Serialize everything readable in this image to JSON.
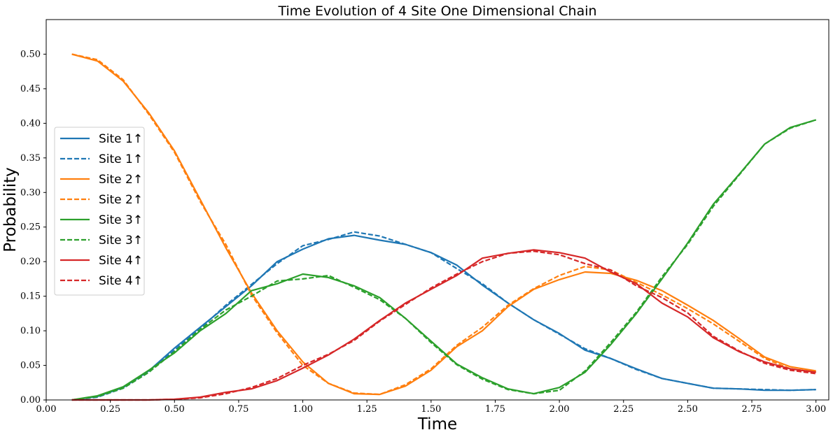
{
  "chart_data": {
    "type": "line",
    "title": "Time Evolution of 4 Site One Dimensional Chain",
    "xlabel": "Time",
    "ylabel": "Probability",
    "xlim": [
      0.0,
      3.05
    ],
    "ylim": [
      0.0,
      0.55
    ],
    "xticks": [
      "0.00",
      "0.25",
      "0.50",
      "0.75",
      "1.00",
      "1.25",
      "1.50",
      "1.75",
      "2.00",
      "2.25",
      "2.50",
      "2.75",
      "3.00"
    ],
    "yticks": [
      "0.00",
      "0.05",
      "0.10",
      "0.15",
      "0.20",
      "0.25",
      "0.30",
      "0.35",
      "0.40",
      "0.45",
      "0.50"
    ],
    "grid": false,
    "legend_position": "center-left",
    "x": [
      0.1,
      0.2,
      0.3,
      0.4,
      0.5,
      0.6,
      0.7,
      0.8,
      0.9,
      1.0,
      1.1,
      1.2,
      1.3,
      1.4,
      1.5,
      1.6,
      1.7,
      1.8,
      1.9,
      2.0,
      2.1,
      2.2,
      2.3,
      2.4,
      2.5,
      2.6,
      2.7,
      2.8,
      2.9,
      3.0
    ],
    "series": [
      {
        "name": "Site 1↑",
        "color": "#1f77b4",
        "dash": "solid",
        "values": [
          0.0,
          0.005,
          0.018,
          0.042,
          0.075,
          0.105,
          0.135,
          0.165,
          0.2,
          0.218,
          0.233,
          0.238,
          0.231,
          0.225,
          0.213,
          0.195,
          0.166,
          0.14,
          0.116,
          0.096,
          0.072,
          0.06,
          0.045,
          0.031,
          0.024,
          0.017,
          0.016,
          0.014,
          0.014,
          0.015
        ]
      },
      {
        "name": "Site 1↑",
        "color": "#1f77b4",
        "dash": "dashed",
        "values": [
          0.0,
          0.004,
          0.017,
          0.04,
          0.072,
          0.103,
          0.137,
          0.167,
          0.197,
          0.223,
          0.232,
          0.243,
          0.237,
          0.225,
          0.213,
          0.19,
          0.168,
          0.14,
          0.116,
          0.095,
          0.074,
          0.06,
          0.044,
          0.031,
          0.024,
          0.017,
          0.016,
          0.015,
          0.014,
          0.015
        ]
      },
      {
        "name": "Site 2↑",
        "color": "#ff7f0e",
        "dash": "solid",
        "values": [
          0.5,
          0.49,
          0.461,
          0.415,
          0.36,
          0.29,
          0.22,
          0.155,
          0.1,
          0.055,
          0.024,
          0.009,
          0.008,
          0.02,
          0.043,
          0.077,
          0.1,
          0.135,
          0.16,
          0.174,
          0.185,
          0.183,
          0.173,
          0.158,
          0.137,
          0.115,
          0.089,
          0.062,
          0.048,
          0.042
        ]
      },
      {
        "name": "Site 2↑",
        "color": "#ff7f0e",
        "dash": "dashed",
        "values": [
          0.5,
          0.492,
          0.463,
          0.413,
          0.358,
          0.287,
          0.225,
          0.152,
          0.097,
          0.05,
          0.024,
          0.01,
          0.008,
          0.022,
          0.045,
          0.079,
          0.105,
          0.137,
          0.161,
          0.18,
          0.193,
          0.188,
          0.17,
          0.152,
          0.132,
          0.11,
          0.085,
          0.06,
          0.045,
          0.04
        ]
      },
      {
        "name": "Site 3↑",
        "color": "#2ca02c",
        "dash": "solid",
        "values": [
          0.0,
          0.006,
          0.019,
          0.043,
          0.068,
          0.1,
          0.125,
          0.158,
          0.168,
          0.182,
          0.177,
          0.165,
          0.148,
          0.118,
          0.085,
          0.052,
          0.032,
          0.016,
          0.009,
          0.018,
          0.04,
          0.08,
          0.125,
          0.175,
          0.227,
          0.283,
          0.326,
          0.37,
          0.394,
          0.405
        ]
      },
      {
        "name": "Site 3↑",
        "color": "#2ca02c",
        "dash": "dashed",
        "values": [
          0.0,
          0.005,
          0.017,
          0.04,
          0.07,
          0.102,
          0.13,
          0.15,
          0.172,
          0.175,
          0.18,
          0.163,
          0.145,
          0.118,
          0.083,
          0.051,
          0.03,
          0.015,
          0.009,
          0.014,
          0.042,
          0.083,
          0.127,
          0.178,
          0.225,
          0.28,
          0.325,
          0.37,
          0.393,
          0.405
        ]
      },
      {
        "name": "Site 4↑",
        "color": "#d62728",
        "dash": "solid",
        "values": [
          0.0,
          0.0,
          0.0,
          0.0,
          0.001,
          0.004,
          0.011,
          0.016,
          0.028,
          0.046,
          0.065,
          0.088,
          0.115,
          0.14,
          0.16,
          0.18,
          0.205,
          0.212,
          0.217,
          0.213,
          0.205,
          0.185,
          0.168,
          0.14,
          0.12,
          0.09,
          0.07,
          0.055,
          0.045,
          0.04
        ]
      },
      {
        "name": "Site 4↑",
        "color": "#d62728",
        "dash": "dashed",
        "values": [
          0.0,
          0.0,
          0.0,
          0.0,
          0.001,
          0.003,
          0.009,
          0.018,
          0.031,
          0.05,
          0.066,
          0.086,
          0.114,
          0.138,
          0.162,
          0.182,
          0.2,
          0.212,
          0.215,
          0.21,
          0.197,
          0.188,
          0.165,
          0.148,
          0.126,
          0.092,
          0.071,
          0.053,
          0.043,
          0.038
        ]
      }
    ]
  }
}
